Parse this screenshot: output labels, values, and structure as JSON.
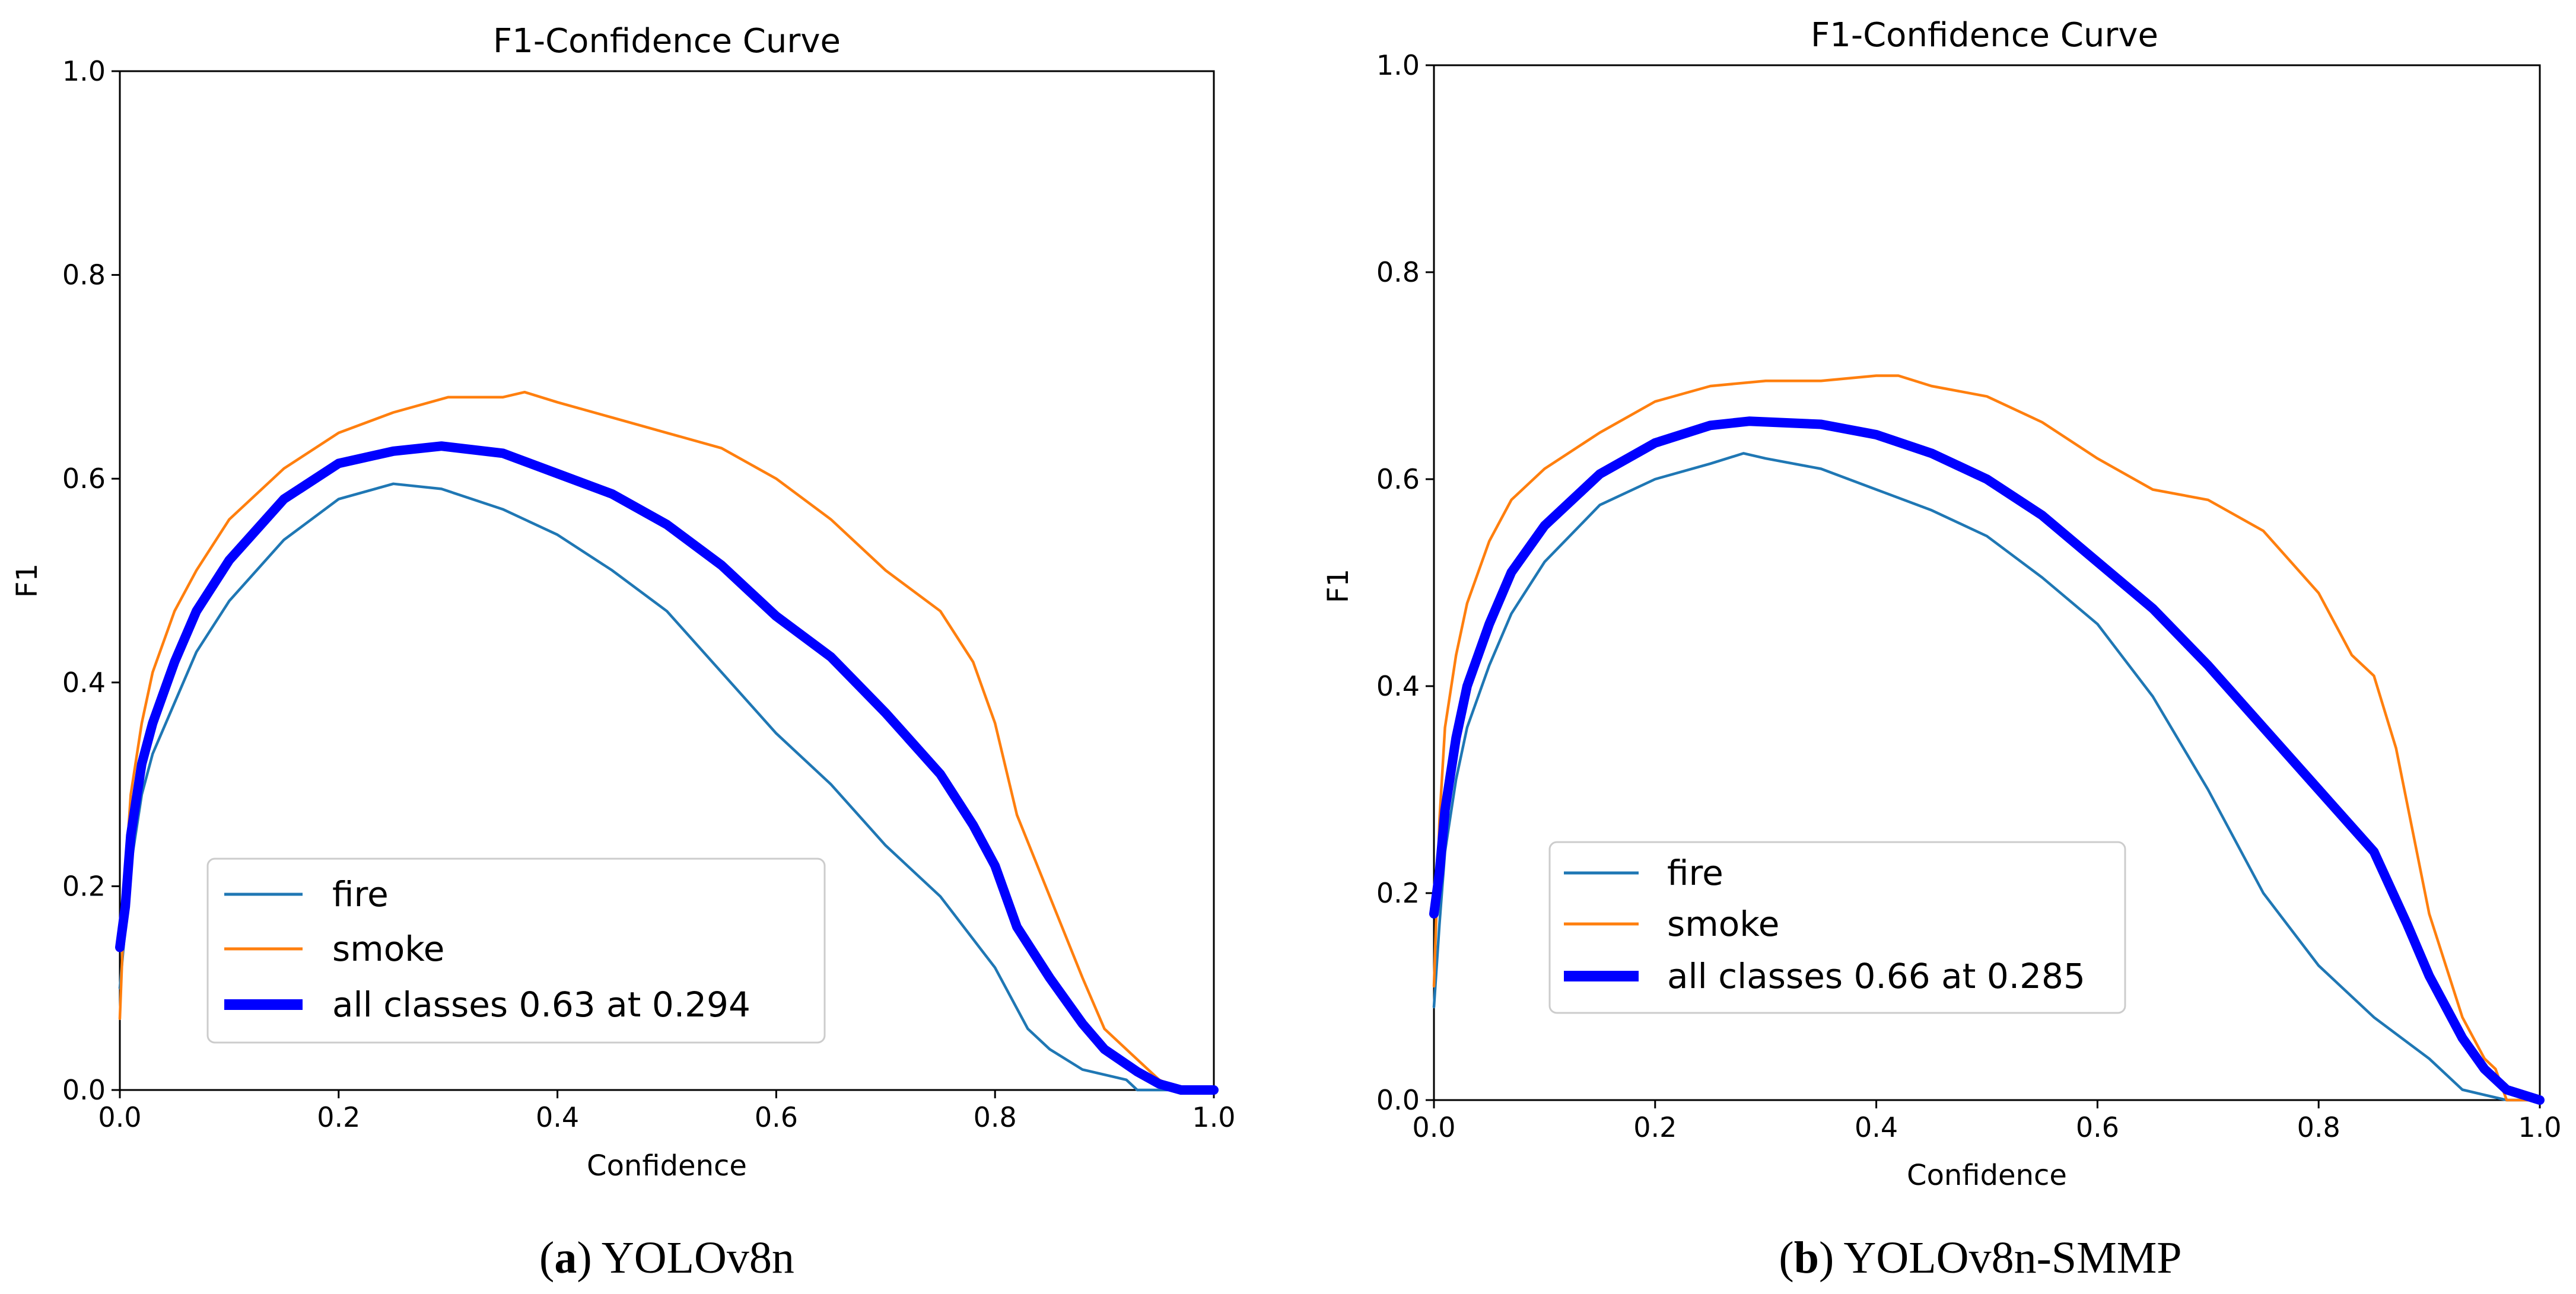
{
  "colors": {
    "fire": "#1f77b4",
    "smoke": "#ff7f0e",
    "all_classes": "#0000ff"
  },
  "chart_data": [
    {
      "type": "line",
      "title": "F1-Confidence Curve",
      "xlabel": "Confidence",
      "ylabel": "F1",
      "xlim": [
        0.0,
        1.0
      ],
      "ylim": [
        0.0,
        1.0
      ],
      "xticks": [
        "0.0",
        "0.2",
        "0.4",
        "0.6",
        "0.8",
        "1.0"
      ],
      "yticks": [
        "0.0",
        "0.2",
        "0.4",
        "0.6",
        "0.8",
        "1.0"
      ],
      "legend_position": "lower-left",
      "caption": {
        "label": "a",
        "paren_open": "(",
        "paren_close": ")",
        "text": " YOLOv8n"
      },
      "series": [
        {
          "name": "fire",
          "legend": "fire",
          "color": "#1f77b4",
          "thick": false,
          "x": [
            0.0,
            0.005,
            0.01,
            0.02,
            0.03,
            0.05,
            0.07,
            0.1,
            0.15,
            0.2,
            0.25,
            0.294,
            0.35,
            0.4,
            0.45,
            0.5,
            0.55,
            0.6,
            0.65,
            0.7,
            0.75,
            0.8,
            0.83,
            0.85,
            0.88,
            0.9,
            0.92,
            0.93,
            0.95,
            0.97,
            1.0
          ],
          "y": [
            0.1,
            0.16,
            0.22,
            0.29,
            0.33,
            0.38,
            0.43,
            0.48,
            0.54,
            0.58,
            0.595,
            0.59,
            0.57,
            0.545,
            0.51,
            0.47,
            0.41,
            0.35,
            0.3,
            0.24,
            0.19,
            0.12,
            0.06,
            0.04,
            0.02,
            0.015,
            0.01,
            0.0,
            0.0,
            0.0,
            0.0
          ]
        },
        {
          "name": "smoke",
          "legend": "smoke",
          "color": "#ff7f0e",
          "thick": false,
          "x": [
            0.0,
            0.005,
            0.01,
            0.02,
            0.03,
            0.05,
            0.07,
            0.1,
            0.15,
            0.2,
            0.25,
            0.3,
            0.35,
            0.37,
            0.4,
            0.45,
            0.5,
            0.55,
            0.6,
            0.65,
            0.7,
            0.75,
            0.78,
            0.8,
            0.82,
            0.85,
            0.88,
            0.9,
            0.93,
            0.95,
            0.97,
            1.0
          ],
          "y": [
            0.07,
            0.21,
            0.29,
            0.36,
            0.41,
            0.47,
            0.51,
            0.56,
            0.61,
            0.645,
            0.665,
            0.68,
            0.68,
            0.685,
            0.675,
            0.66,
            0.645,
            0.63,
            0.6,
            0.56,
            0.51,
            0.47,
            0.42,
            0.36,
            0.27,
            0.19,
            0.11,
            0.06,
            0.03,
            0.01,
            0.0,
            0.0
          ]
        },
        {
          "name": "all classes",
          "legend": "all classes 0.63 at 0.294",
          "color": "#0000ff",
          "thick": true,
          "x": [
            0.0,
            0.005,
            0.01,
            0.02,
            0.03,
            0.05,
            0.07,
            0.1,
            0.15,
            0.2,
            0.25,
            0.294,
            0.35,
            0.4,
            0.45,
            0.5,
            0.55,
            0.6,
            0.65,
            0.7,
            0.75,
            0.78,
            0.8,
            0.82,
            0.85,
            0.88,
            0.9,
            0.93,
            0.95,
            0.97,
            1.0
          ],
          "y": [
            0.14,
            0.18,
            0.25,
            0.32,
            0.36,
            0.42,
            0.47,
            0.52,
            0.58,
            0.615,
            0.627,
            0.632,
            0.625,
            0.605,
            0.585,
            0.555,
            0.515,
            0.465,
            0.425,
            0.37,
            0.31,
            0.26,
            0.22,
            0.16,
            0.11,
            0.065,
            0.04,
            0.018,
            0.006,
            0.0,
            0.0
          ]
        }
      ]
    },
    {
      "type": "line",
      "title": "F1-Confidence Curve",
      "xlabel": "Confidence",
      "ylabel": "F1",
      "xlim": [
        0.0,
        1.0
      ],
      "ylim": [
        0.0,
        1.0
      ],
      "xticks": [
        "0.0",
        "0.2",
        "0.4",
        "0.6",
        "0.8",
        "1.0"
      ],
      "yticks": [
        "0.0",
        "0.2",
        "0.4",
        "0.6",
        "0.8",
        "1.0"
      ],
      "legend_position": "lower-left",
      "caption": {
        "label": "b",
        "paren_open": "(",
        "paren_close": ")",
        "text": " YOLOv8n-SMMP"
      },
      "series": [
        {
          "name": "fire",
          "legend": "fire",
          "color": "#1f77b4",
          "thick": false,
          "x": [
            0.0,
            0.005,
            0.01,
            0.02,
            0.03,
            0.05,
            0.07,
            0.1,
            0.15,
            0.2,
            0.25,
            0.28,
            0.3,
            0.35,
            0.4,
            0.45,
            0.5,
            0.55,
            0.6,
            0.65,
            0.7,
            0.75,
            0.8,
            0.85,
            0.9,
            0.93,
            0.95,
            0.97,
            1.0
          ],
          "y": [
            0.09,
            0.17,
            0.24,
            0.31,
            0.36,
            0.42,
            0.47,
            0.52,
            0.575,
            0.6,
            0.615,
            0.625,
            0.62,
            0.61,
            0.59,
            0.57,
            0.545,
            0.505,
            0.46,
            0.39,
            0.3,
            0.2,
            0.13,
            0.08,
            0.04,
            0.01,
            0.005,
            0.0,
            0.0
          ]
        },
        {
          "name": "smoke",
          "legend": "smoke",
          "color": "#ff7f0e",
          "thick": false,
          "x": [
            0.0,
            0.005,
            0.01,
            0.02,
            0.03,
            0.05,
            0.07,
            0.1,
            0.15,
            0.2,
            0.25,
            0.3,
            0.35,
            0.4,
            0.42,
            0.45,
            0.5,
            0.55,
            0.6,
            0.65,
            0.7,
            0.75,
            0.8,
            0.83,
            0.85,
            0.87,
            0.9,
            0.93,
            0.95,
            0.96,
            0.97,
            1.0
          ],
          "y": [
            0.11,
            0.27,
            0.36,
            0.43,
            0.48,
            0.54,
            0.58,
            0.61,
            0.645,
            0.675,
            0.69,
            0.695,
            0.695,
            0.7,
            0.7,
            0.69,
            0.68,
            0.655,
            0.62,
            0.59,
            0.58,
            0.55,
            0.49,
            0.43,
            0.41,
            0.34,
            0.18,
            0.08,
            0.04,
            0.03,
            0.0,
            0.0
          ]
        },
        {
          "name": "all classes",
          "legend": "all classes 0.66 at 0.285",
          "color": "#0000ff",
          "thick": true,
          "x": [
            0.0,
            0.005,
            0.01,
            0.02,
            0.03,
            0.05,
            0.07,
            0.1,
            0.15,
            0.2,
            0.25,
            0.285,
            0.35,
            0.4,
            0.45,
            0.5,
            0.55,
            0.6,
            0.65,
            0.7,
            0.75,
            0.8,
            0.85,
            0.88,
            0.9,
            0.93,
            0.95,
            0.97,
            1.0
          ],
          "y": [
            0.18,
            0.22,
            0.28,
            0.35,
            0.4,
            0.46,
            0.51,
            0.555,
            0.605,
            0.635,
            0.652,
            0.656,
            0.653,
            0.643,
            0.625,
            0.6,
            0.565,
            0.52,
            0.475,
            0.42,
            0.36,
            0.3,
            0.24,
            0.17,
            0.12,
            0.06,
            0.03,
            0.01,
            0.0
          ]
        }
      ]
    }
  ]
}
